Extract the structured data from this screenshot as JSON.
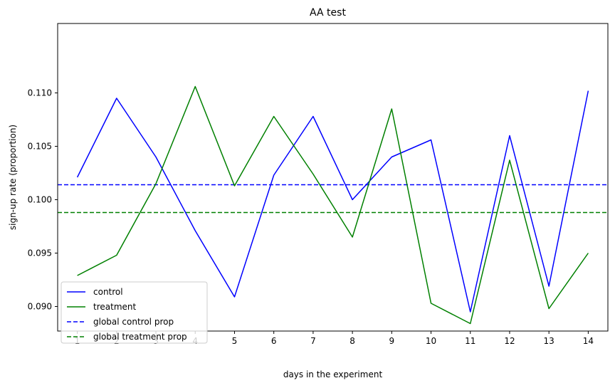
{
  "chart_data": {
    "type": "line",
    "title": "AA test",
    "xlabel": "days in the experiment",
    "ylabel": "sign-up rate (proportion)",
    "x": [
      1,
      2,
      3,
      4,
      5,
      6,
      7,
      8,
      9,
      10,
      11,
      12,
      13,
      14
    ],
    "xlim": [
      0.5,
      14.5
    ],
    "ylim": [
      0.0877,
      0.1165
    ],
    "x_ticks": [
      1,
      2,
      3,
      4,
      5,
      6,
      7,
      8,
      9,
      10,
      11,
      12,
      13,
      14
    ],
    "y_ticks": [
      0.09,
      0.095,
      0.1,
      0.105,
      0.11
    ],
    "y_tick_labels": [
      "0.090",
      "0.095",
      "0.100",
      "0.105",
      "0.110"
    ],
    "grid": false,
    "legend_position": "lower-left",
    "series": [
      {
        "name": "control",
        "color": "#0000ff",
        "style": "solid",
        "values": [
          0.1021,
          0.1095,
          0.104,
          0.0971,
          0.0909,
          0.1023,
          0.1078,
          0.1,
          0.104,
          0.1056,
          0.0895,
          0.106,
          0.0919,
          0.1102
        ]
      },
      {
        "name": "treatment",
        "color": "#008000",
        "style": "solid",
        "values": [
          0.0929,
          0.0948,
          0.1015,
          0.1106,
          0.1013,
          0.1078,
          0.1024,
          0.0965,
          0.1085,
          0.0903,
          0.0884,
          0.1037,
          0.0898,
          0.095
        ]
      }
    ],
    "hlines": [
      {
        "name": "global control prop",
        "color": "#0000ff",
        "style": "dashed",
        "y": 0.1014
      },
      {
        "name": "global treatment prop",
        "color": "#008000",
        "style": "dashed",
        "y": 0.0988
      }
    ]
  }
}
